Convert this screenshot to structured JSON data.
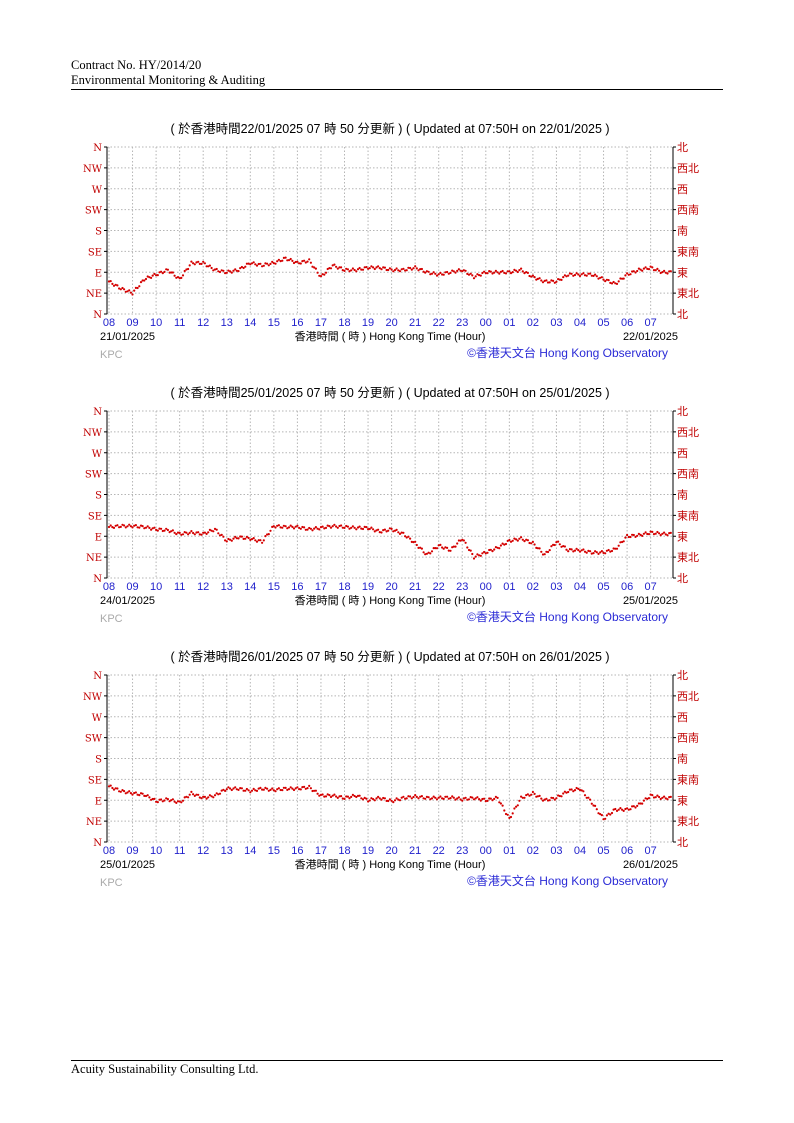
{
  "header": {
    "contract": "Contract No. HY/2014/20",
    "subtitle": "Environmental Monitoring & Auditing"
  },
  "footer": {
    "company": "Acuity Sustainability Consulting Ltd."
  },
  "colors": {
    "series": "#d40000",
    "axis_label_left": "#c00000",
    "hour_label": "#2222cc",
    "copyright": "#2b2bd6",
    "station": "#aaaaaa",
    "grid": "#b5b5b5"
  },
  "chart_data": [
    {
      "type": "scatter",
      "title": "( 於香港時間22/01/2025 07 時 50 分更新 ) ( Updated at 07:50H on 22/01/2025 )",
      "xlabel": "香港時間 ( 時 )  Hong Kong Time (Hour)",
      "date_start": "21/01/2025",
      "date_end": "22/01/2025",
      "station": "KPC",
      "credit": "©香港天文台 Hong Kong Observatory",
      "x_ticks": [
        "08",
        "09",
        "10",
        "11",
        "12",
        "13",
        "14",
        "15",
        "16",
        "17",
        "18",
        "19",
        "20",
        "21",
        "22",
        "23",
        "00",
        "01",
        "02",
        "03",
        "04",
        "05",
        "06",
        "07"
      ],
      "y_ticks_left": [
        "N",
        "NE",
        "E",
        "SE",
        "S",
        "SW",
        "W",
        "NW",
        "N"
      ],
      "y_ticks_right": [
        "北",
        "東北",
        "東",
        "東南",
        "南",
        "西南",
        "西",
        "西北",
        "北"
      ],
      "ylim": [
        0,
        360
      ],
      "x_interval_hours": 0.5,
      "grid": true,
      "values": [
        70,
        55,
        45,
        75,
        85,
        95,
        75,
        110,
        110,
        95,
        90,
        95,
        110,
        105,
        110,
        120,
        110,
        115,
        80,
        105,
        95,
        95,
        100,
        100,
        95,
        95,
        100,
        90,
        85,
        90,
        95,
        80,
        90,
        90,
        90,
        95,
        80,
        70,
        70,
        85,
        85,
        85,
        75,
        65,
        85,
        95,
        100,
        90
      ]
    },
    {
      "type": "scatter",
      "title": "( 於香港時間25/01/2025 07 時 50 分更新 ) ( Updated at 07:50H on 25/01/2025 )",
      "xlabel": "香港時間 ( 時 )  Hong Kong Time (Hour)",
      "date_start": "24/01/2025",
      "date_end": "25/01/2025",
      "station": "KPC",
      "credit": "©香港天文台 Hong Kong Observatory",
      "x_ticks": [
        "08",
        "09",
        "10",
        "11",
        "12",
        "13",
        "14",
        "15",
        "16",
        "17",
        "18",
        "19",
        "20",
        "21",
        "22",
        "23",
        "00",
        "01",
        "02",
        "03",
        "04",
        "05",
        "06",
        "07"
      ],
      "y_ticks_left": [
        "N",
        "NE",
        "E",
        "SE",
        "S",
        "SW",
        "W",
        "NW",
        "N"
      ],
      "y_ticks_right": [
        "北",
        "東北",
        "東",
        "東南",
        "南",
        "西南",
        "西",
        "西北",
        "北"
      ],
      "ylim": [
        0,
        360
      ],
      "x_interval_hours": 0.5,
      "grid": true,
      "values": [
        110,
        112,
        112,
        110,
        105,
        103,
        95,
        98,
        95,
        105,
        80,
        88,
        85,
        78,
        112,
        110,
        110,
        105,
        108,
        112,
        110,
        108,
        108,
        100,
        105,
        95,
        75,
        50,
        70,
        60,
        85,
        45,
        55,
        65,
        80,
        85,
        75,
        50,
        78,
        60,
        60,
        55,
        55,
        62,
        90,
        92,
        98,
        95
      ]
    },
    {
      "type": "scatter",
      "title": "( 於香港時間26/01/2025 07 時 50 分更新 ) ( Updated at 07:50H on 26/01/2025 )",
      "xlabel": "香港時間 ( 時 )  Hong Kong Time (Hour)",
      "date_start": "25/01/2025",
      "date_end": "26/01/2025",
      "station": "KPC",
      "credit": "©香港天文台 Hong Kong Observatory",
      "x_ticks": [
        "08",
        "09",
        "10",
        "11",
        "12",
        "13",
        "14",
        "15",
        "16",
        "17",
        "18",
        "19",
        "20",
        "21",
        "22",
        "23",
        "00",
        "01",
        "02",
        "03",
        "04",
        "05",
        "06",
        "07"
      ],
      "y_ticks_left": [
        "N",
        "NE",
        "E",
        "SE",
        "S",
        "SW",
        "W",
        "NW",
        "N"
      ],
      "y_ticks_right": [
        "北",
        "東北",
        "東",
        "東南",
        "南",
        "西南",
        "西",
        "西北",
        "北"
      ],
      "ylim": [
        0,
        360
      ],
      "x_interval_hours": 0.5,
      "grid": true,
      "values": [
        120,
        110,
        105,
        102,
        88,
        92,
        85,
        105,
        95,
        100,
        115,
        115,
        110,
        115,
        112,
        115,
        115,
        118,
        100,
        100,
        95,
        100,
        90,
        95,
        88,
        95,
        98,
        95,
        95,
        96,
        92,
        95,
        90,
        95,
        50,
        95,
        105,
        90,
        95,
        110,
        115,
        85,
        50,
        70,
        70,
        80,
        100,
        95
      ]
    }
  ]
}
